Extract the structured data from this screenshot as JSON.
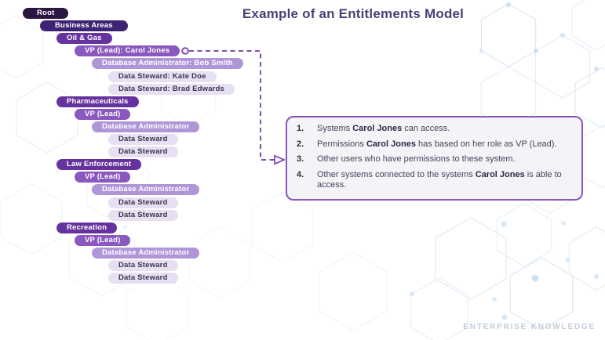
{
  "title": "Example of an Entitlements Model",
  "footer": {
    "brand": "ENTERPRISE KNOWLEDGE"
  },
  "colors": {
    "root": "#2b1541",
    "business_areas": "#3e2273",
    "area": "#66339e",
    "vp": "#8a58bf",
    "dba": "#b095d8",
    "ds": "#e6e0f2",
    "ds_text": "#3a3450",
    "connector": "#7e4fb3",
    "panel_border": "#8a56bd",
    "title_text": "#4c3f75",
    "brand_text": "#c4ccd7"
  },
  "tree": {
    "nodes": [
      {
        "label": "Root",
        "level": 0,
        "type": "root"
      },
      {
        "label": "Business Areas",
        "level": 1,
        "type": "business_areas"
      },
      {
        "label": "Oil & Gas",
        "level": 2,
        "type": "area"
      },
      {
        "label": "VP (Lead): Carol Jones",
        "level": 3,
        "type": "vp",
        "connector": true
      },
      {
        "label": "Database Administrator: Bob Smith",
        "level": 4,
        "type": "dba"
      },
      {
        "label": "Data Steward: Kate Doe",
        "level": 5,
        "type": "ds"
      },
      {
        "label": "Data Steward: Brad Edwards",
        "level": 5,
        "type": "ds"
      },
      {
        "label": "Pharmaceuticals",
        "level": 2,
        "type": "area"
      },
      {
        "label": "VP (Lead)",
        "level": 3,
        "type": "vp"
      },
      {
        "label": "Database Administrator",
        "level": 4,
        "type": "dba"
      },
      {
        "label": "Data Steward",
        "level": 5,
        "type": "ds"
      },
      {
        "label": "Data Steward",
        "level": 5,
        "type": "ds"
      },
      {
        "label": "Law Enforcement",
        "level": 2,
        "type": "area"
      },
      {
        "label": "VP (Lead)",
        "level": 3,
        "type": "vp"
      },
      {
        "label": "Database Administrator",
        "level": 4,
        "type": "dba"
      },
      {
        "label": "Data Steward",
        "level": 5,
        "type": "ds"
      },
      {
        "label": "Data Steward",
        "level": 5,
        "type": "ds"
      },
      {
        "label": "Recreation",
        "level": 2,
        "type": "area"
      },
      {
        "label": "VP (Lead)",
        "level": 3,
        "type": "vp"
      },
      {
        "label": "Database Administrator",
        "level": 4,
        "type": "dba"
      },
      {
        "label": "Data Steward",
        "level": 5,
        "type": "ds"
      },
      {
        "label": "Data Steward",
        "level": 5,
        "type": "ds"
      }
    ]
  },
  "panel": {
    "items": [
      {
        "number": "1.",
        "segments": [
          {
            "text": "Systems ",
            "bold": false
          },
          {
            "text": "Carol Jones",
            "bold": true
          },
          {
            "text": " can access.",
            "bold": false
          }
        ]
      },
      {
        "number": "2.",
        "segments": [
          {
            "text": "Permissions ",
            "bold": false
          },
          {
            "text": "Carol Jones",
            "bold": true
          },
          {
            "text": " has based on her role as VP (Lead).",
            "bold": false
          }
        ]
      },
      {
        "number": "3.",
        "segments": [
          {
            "text": "Other users who have permissions to these system.",
            "bold": false
          }
        ]
      },
      {
        "number": "4.",
        "segments": [
          {
            "text": "Other systems connected to the systems ",
            "bold": false
          },
          {
            "text": "Carol Jones",
            "bold": true
          },
          {
            "text": " is able to access.",
            "bold": false
          }
        ]
      }
    ]
  }
}
